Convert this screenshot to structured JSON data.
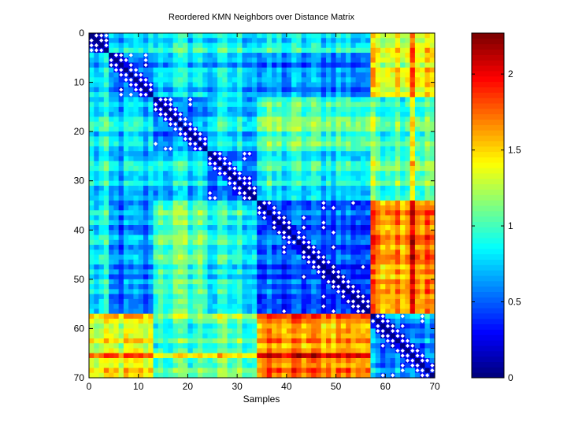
{
  "chart_data": {
    "type": "heatmap",
    "title": "Reordered KMN Neighbors over Distance Matrix",
    "xlabel": "Samples",
    "ylabel": "",
    "n": 70,
    "xlim": [
      0,
      70
    ],
    "ylim": [
      0,
      70
    ],
    "x_ticks": [
      0,
      10,
      20,
      30,
      40,
      50,
      60,
      70
    ],
    "y_ticks": [
      0,
      10,
      20,
      30,
      40,
      50,
      60,
      70
    ],
    "x_tick_labels": [
      "0",
      "10",
      "20",
      "30",
      "40",
      "50",
      "60",
      "70"
    ],
    "y_tick_labels": [
      "0",
      "10",
      "20",
      "30",
      "40",
      "50",
      "60",
      "70"
    ],
    "colormap": "jet",
    "color_range": [
      0,
      2.27
    ],
    "colorbar_ticks": [
      0,
      0.5,
      1,
      1.5,
      2
    ],
    "colorbar_tick_labels": [
      "0",
      "0.5",
      "1",
      "1.5",
      "2"
    ],
    "clusters": [
      [
        0,
        4
      ],
      [
        4,
        13
      ],
      [
        13,
        24
      ],
      [
        24,
        34
      ],
      [
        34,
        57
      ],
      [
        57,
        70
      ]
    ],
    "block_means": [
      [
        0.25,
        0.7,
        0.85,
        0.8,
        0.8,
        1.35
      ],
      [
        0.7,
        0.45,
        0.75,
        0.7,
        0.55,
        1.4
      ],
      [
        0.85,
        0.75,
        0.6,
        0.8,
        1.05,
        1.05
      ],
      [
        0.8,
        0.7,
        0.8,
        0.55,
        0.85,
        1.1
      ],
      [
        0.8,
        0.55,
        1.05,
        0.85,
        0.45,
        1.7
      ],
      [
        1.35,
        1.4,
        1.05,
        1.1,
        1.7,
        0.65
      ]
    ],
    "hot_index": 65,
    "hot_boost": 0.45,
    "neighbors_per_sample": 4,
    "neighbor_marker_color": "#ffffff",
    "diagonal_value": 0
  }
}
